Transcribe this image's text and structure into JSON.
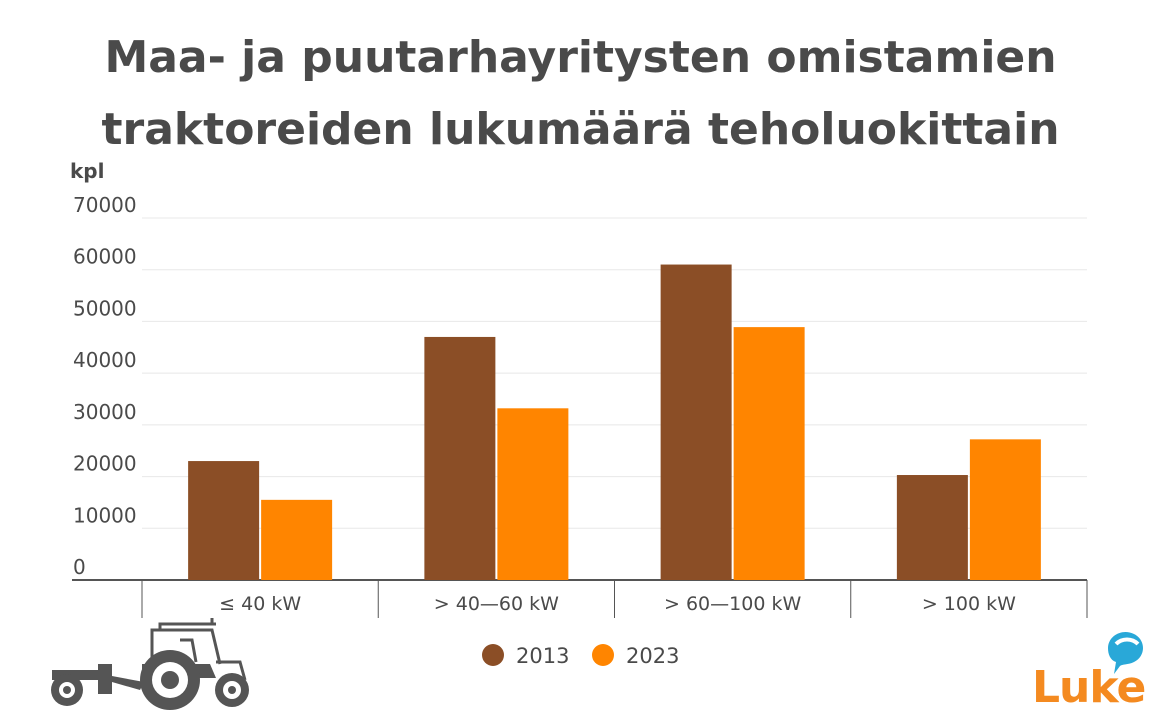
{
  "title_line1": "Maa- ja puutarhayritysten omistamien",
  "title_line2": "traktoreiden lukumäärä teholuokittain",
  "logo_text": "Luke",
  "colors": {
    "s2013": "#8b4e26",
    "s2023": "#ff8500",
    "text": "#4a4a4a",
    "grid": "#e8e8e8",
    "axis": "#555555",
    "accent": "#f48a20",
    "leaf": "#29a8d8"
  },
  "chart_data": {
    "type": "bar",
    "title": "Maa- ja puutarhayritysten omistamien traktoreiden lukumäärä teholuokittain",
    "ylabel": "kpl",
    "xlabel": "",
    "categories": [
      "≤ 40 kW",
      "> 40—60 kW",
      "> 60—100 kW",
      "> 100 kW"
    ],
    "series": [
      {
        "name": "2013",
        "values": [
          23000,
          47000,
          61000,
          20300
        ]
      },
      {
        "name": "2023",
        "values": [
          15500,
          33200,
          48900,
          27200
        ]
      }
    ],
    "ylim": [
      0,
      70000
    ],
    "yticks": [
      "0",
      "10000",
      "20000",
      "30000",
      "40000",
      "50000",
      "60000",
      "70000"
    ],
    "grid": true,
    "legend": "bottom"
  }
}
